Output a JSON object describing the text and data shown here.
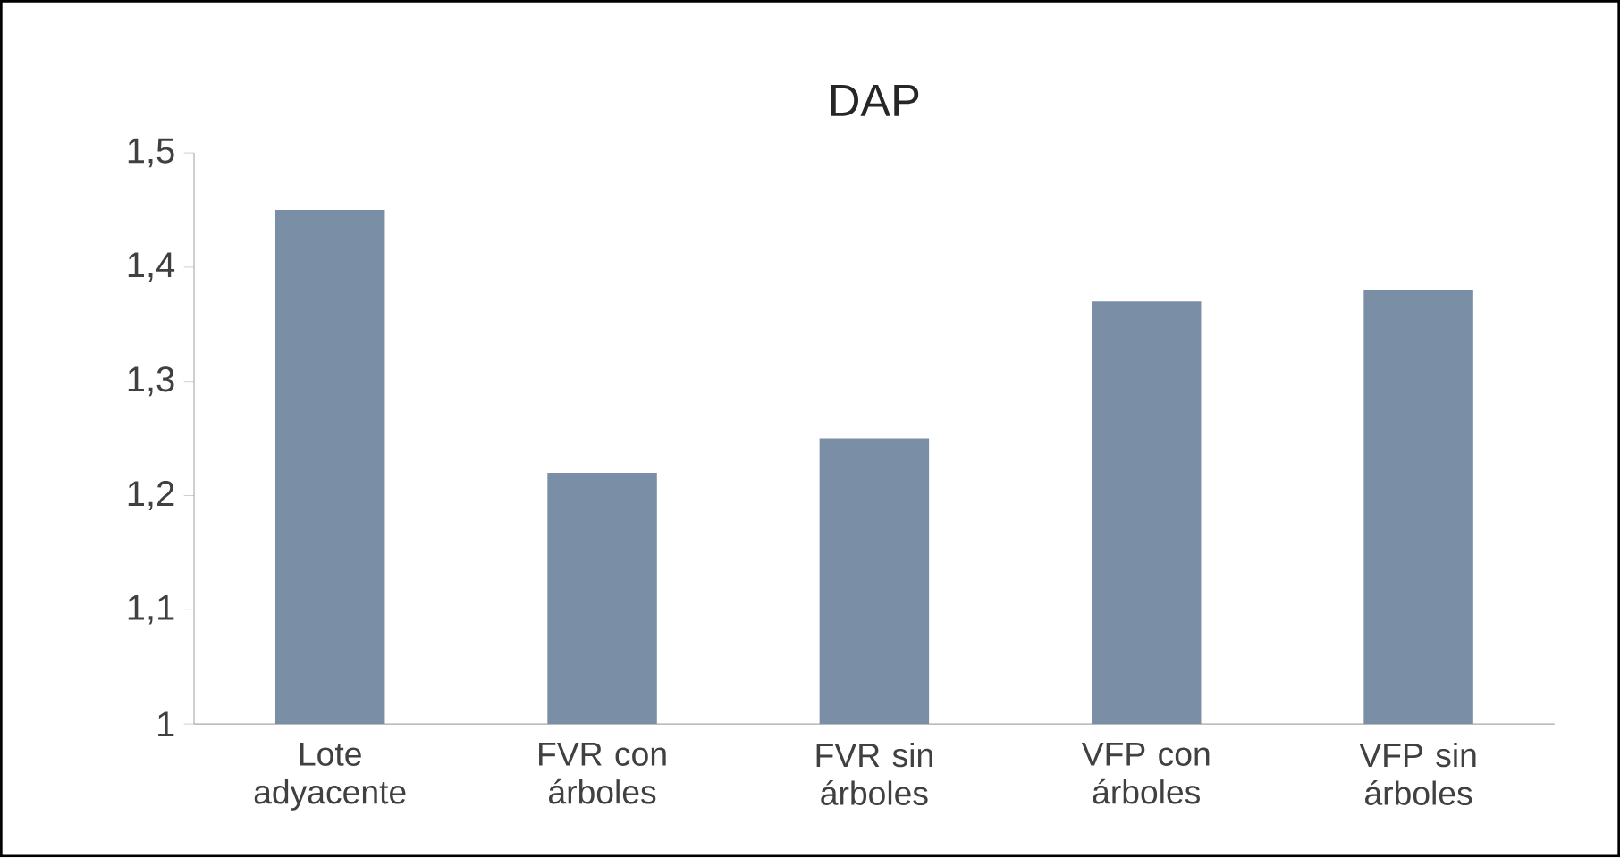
{
  "chart_data": {
    "type": "bar",
    "title": "DAP",
    "categories": [
      "Lote adyacente",
      "FVR con árboles",
      "FVR sin árboles",
      "VFP con árboles",
      "VFP sin árboles"
    ],
    "values": [
      1.45,
      1.22,
      1.25,
      1.37,
      1.38
    ],
    "color": "#7a8fa6",
    "ylim": [
      1,
      1.5
    ],
    "yticks": [
      {
        "value": 1,
        "label": "1"
      },
      {
        "value": 1.1,
        "label": "1,1"
      },
      {
        "value": 1.2,
        "label": "1,2"
      },
      {
        "value": 1.3,
        "label": "1,3"
      },
      {
        "value": 1.4,
        "label": "1,4"
      },
      {
        "value": 1.5,
        "label": "1,5"
      }
    ],
    "grid": false
  }
}
